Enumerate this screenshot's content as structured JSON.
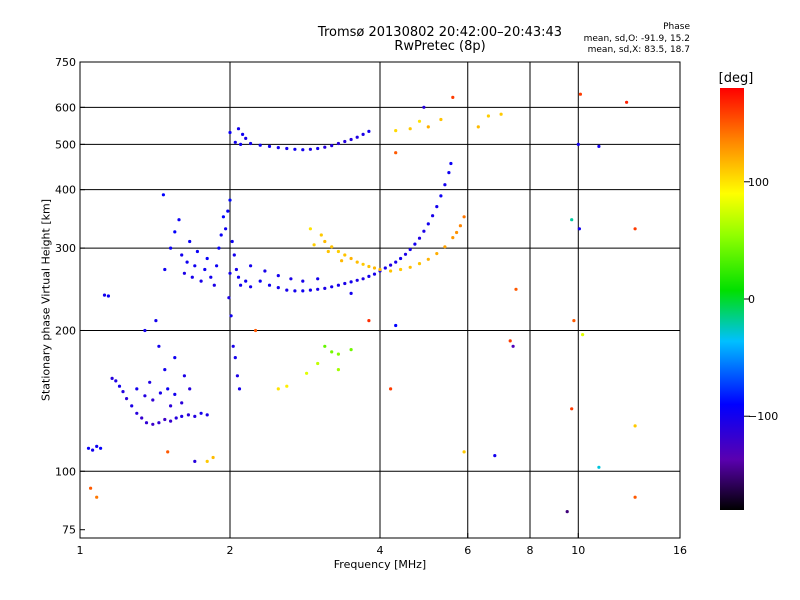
{
  "header": {
    "title_line1": "Tromsø 20130802 20:42:00–20:43:43",
    "title_line2": "RwPretec (8p)"
  },
  "phase_box": {
    "title": "Phase",
    "line1": "mean, sd,O: -91.9, 15.2",
    "line2": "mean, sd,X:  83.5, 18.7"
  },
  "colorbar": {
    "label": "[deg]",
    "ticks": [
      {
        "value": 100,
        "label": "100"
      },
      {
        "value": 0,
        "label": "0"
      },
      {
        "value": -100,
        "label": "−100"
      }
    ],
    "range": [
      -180,
      180
    ]
  },
  "chart_data": {
    "type": "scatter",
    "title": "Tromsø 20130802 20:42:00–20:43:43",
    "subtitle": "RwPretec (8p)",
    "xlabel": "Frequency [MHz]",
    "ylabel": "Stationary phase Virtual Height [km]",
    "x_scale": "log",
    "y_scale": "log",
    "xlim": [
      1,
      16
    ],
    "ylim": [
      72,
      750
    ],
    "x_ticks": [
      {
        "value": 1,
        "label": "1"
      },
      {
        "value": 2,
        "label": "2"
      },
      {
        "value": 4,
        "label": "4"
      },
      {
        "value": 6,
        "label": "6"
      },
      {
        "value": 8,
        "label": "8"
      },
      {
        "value": 10,
        "label": "10"
      },
      {
        "value": 16,
        "label": "16"
      }
    ],
    "x_gridlines": [
      2,
      4,
      6,
      8,
      10
    ],
    "y_ticks": [
      {
        "value": 750,
        "label": "750"
      },
      {
        "value": 600,
        "label": "600"
      },
      {
        "value": 500,
        "label": "500"
      },
      {
        "value": 400,
        "label": "400"
      },
      {
        "value": 300,
        "label": "300"
      },
      {
        "value": 200,
        "label": "200"
      },
      {
        "value": 100,
        "label": "100"
      },
      {
        "value": 75,
        "label": "75"
      }
    ],
    "y_gridlines": [
      100,
      200,
      300,
      400,
      500,
      600
    ],
    "grid": true,
    "color_scale": "phase in degrees (rainbow)",
    "points": [
      {
        "x": 1.04,
        "y": 112,
        "p": -95
      },
      {
        "x": 1.06,
        "y": 111,
        "p": -100
      },
      {
        "x": 1.08,
        "y": 113,
        "p": -98
      },
      {
        "x": 1.1,
        "y": 112,
        "p": -92
      },
      {
        "x": 1.05,
        "y": 92,
        "p": 150
      },
      {
        "x": 1.08,
        "y": 88,
        "p": 140
      },
      {
        "x": 1.12,
        "y": 238,
        "p": -100
      },
      {
        "x": 1.14,
        "y": 237,
        "p": -95
      },
      {
        "x": 1.16,
        "y": 158,
        "p": -110
      },
      {
        "x": 1.18,
        "y": 156,
        "p": -105
      },
      {
        "x": 1.2,
        "y": 152,
        "p": -100
      },
      {
        "x": 1.22,
        "y": 148,
        "p": -108
      },
      {
        "x": 1.24,
        "y": 143,
        "p": -112
      },
      {
        "x": 1.27,
        "y": 138,
        "p": -104
      },
      {
        "x": 1.3,
        "y": 133,
        "p": -110
      },
      {
        "x": 1.33,
        "y": 130,
        "p": -118
      },
      {
        "x": 1.36,
        "y": 127,
        "p": -115
      },
      {
        "x": 1.4,
        "y": 126,
        "p": -120
      },
      {
        "x": 1.44,
        "y": 127,
        "p": -116
      },
      {
        "x": 1.48,
        "y": 129,
        "p": -122
      },
      {
        "x": 1.52,
        "y": 128,
        "p": -118
      },
      {
        "x": 1.56,
        "y": 130,
        "p": -110
      },
      {
        "x": 1.6,
        "y": 131,
        "p": -105
      },
      {
        "x": 1.65,
        "y": 132,
        "p": -112
      },
      {
        "x": 1.7,
        "y": 131,
        "p": -108
      },
      {
        "x": 1.75,
        "y": 133,
        "p": -100
      },
      {
        "x": 1.8,
        "y": 132,
        "p": -104
      },
      {
        "x": 1.3,
        "y": 150,
        "p": -100
      },
      {
        "x": 1.35,
        "y": 145,
        "p": -108
      },
      {
        "x": 1.4,
        "y": 142,
        "p": -115
      },
      {
        "x": 1.45,
        "y": 147,
        "p": -102
      },
      {
        "x": 1.5,
        "y": 150,
        "p": -96
      },
      {
        "x": 1.55,
        "y": 146,
        "p": -100
      },
      {
        "x": 1.6,
        "y": 140,
        "p": -112
      },
      {
        "x": 1.48,
        "y": 165,
        "p": -100
      },
      {
        "x": 1.55,
        "y": 175,
        "p": -98
      },
      {
        "x": 1.62,
        "y": 160,
        "p": -104
      },
      {
        "x": 1.38,
        "y": 155,
        "p": -106
      },
      {
        "x": 1.66,
        "y": 150,
        "p": -110
      },
      {
        "x": 1.44,
        "y": 185,
        "p": -100
      },
      {
        "x": 1.52,
        "y": 138,
        "p": -112
      },
      {
        "x": 1.35,
        "y": 200,
        "p": -100
      },
      {
        "x": 1.42,
        "y": 210,
        "p": -100
      },
      {
        "x": 1.47,
        "y": 390,
        "p": -90
      },
      {
        "x": 1.48,
        "y": 270,
        "p": -98
      },
      {
        "x": 1.52,
        "y": 300,
        "p": -95
      },
      {
        "x": 1.55,
        "y": 325,
        "p": -92
      },
      {
        "x": 1.58,
        "y": 345,
        "p": -96
      },
      {
        "x": 1.6,
        "y": 290,
        "p": -100
      },
      {
        "x": 1.62,
        "y": 265,
        "p": -104
      },
      {
        "x": 1.64,
        "y": 280,
        "p": -98
      },
      {
        "x": 1.66,
        "y": 310,
        "p": -94
      },
      {
        "x": 1.68,
        "y": 260,
        "p": -102
      },
      {
        "x": 1.7,
        "y": 275,
        "p": -99
      },
      {
        "x": 1.72,
        "y": 295,
        "p": -95
      },
      {
        "x": 1.75,
        "y": 255,
        "p": -103
      },
      {
        "x": 1.78,
        "y": 270,
        "p": -97
      },
      {
        "x": 1.8,
        "y": 285,
        "p": -93
      },
      {
        "x": 1.83,
        "y": 260,
        "p": -100
      },
      {
        "x": 1.86,
        "y": 250,
        "p": -104
      },
      {
        "x": 1.88,
        "y": 275,
        "p": -96
      },
      {
        "x": 1.9,
        "y": 300,
        "p": -92
      },
      {
        "x": 1.92,
        "y": 320,
        "p": -95
      },
      {
        "x": 1.94,
        "y": 350,
        "p": -90
      },
      {
        "x": 1.96,
        "y": 330,
        "p": -98
      },
      {
        "x": 1.98,
        "y": 360,
        "p": -94
      },
      {
        "x": 2.0,
        "y": 380,
        "p": -88
      },
      {
        "x": 2.02,
        "y": 310,
        "p": -96
      },
      {
        "x": 2.04,
        "y": 290,
        "p": -100
      },
      {
        "x": 2.06,
        "y": 270,
        "p": -102
      },
      {
        "x": 2.08,
        "y": 260,
        "p": -98
      },
      {
        "x": 2.1,
        "y": 250,
        "p": -100
      },
      {
        "x": 2.0,
        "y": 265,
        "p": -100
      },
      {
        "x": 1.99,
        "y": 235,
        "p": -104
      },
      {
        "x": 2.01,
        "y": 215,
        "p": -98
      },
      {
        "x": 2.03,
        "y": 185,
        "p": -102
      },
      {
        "x": 2.05,
        "y": 175,
        "p": -100
      },
      {
        "x": 2.07,
        "y": 160,
        "p": -104
      },
      {
        "x": 2.09,
        "y": 150,
        "p": -102
      },
      {
        "x": 2.15,
        "y": 255,
        "p": -98
      },
      {
        "x": 2.2,
        "y": 248,
        "p": -100
      },
      {
        "x": 2.3,
        "y": 255,
        "p": -96
      },
      {
        "x": 2.4,
        "y": 250,
        "p": -98
      },
      {
        "x": 2.5,
        "y": 247,
        "p": -100
      },
      {
        "x": 2.6,
        "y": 244,
        "p": -102
      },
      {
        "x": 2.7,
        "y": 243,
        "p": -100
      },
      {
        "x": 2.8,
        "y": 243,
        "p": -98
      },
      {
        "x": 2.9,
        "y": 244,
        "p": -100
      },
      {
        "x": 3.0,
        "y": 245,
        "p": -102
      },
      {
        "x": 3.1,
        "y": 246,
        "p": -104
      },
      {
        "x": 3.2,
        "y": 248,
        "p": -100
      },
      {
        "x": 3.3,
        "y": 250,
        "p": -102
      },
      {
        "x": 3.4,
        "y": 252,
        "p": -104
      },
      {
        "x": 3.5,
        "y": 254,
        "p": -100
      },
      {
        "x": 3.6,
        "y": 256,
        "p": -104
      },
      {
        "x": 3.7,
        "y": 258,
        "p": -106
      },
      {
        "x": 3.8,
        "y": 261,
        "p": -100
      },
      {
        "x": 3.9,
        "y": 264,
        "p": -102
      },
      {
        "x": 4.0,
        "y": 268,
        "p": -104
      },
      {
        "x": 4.1,
        "y": 272,
        "p": -100
      },
      {
        "x": 4.2,
        "y": 276,
        "p": -106
      },
      {
        "x": 4.3,
        "y": 280,
        "p": -102
      },
      {
        "x": 4.4,
        "y": 285,
        "p": -100
      },
      {
        "x": 4.5,
        "y": 291,
        "p": -104
      },
      {
        "x": 4.6,
        "y": 298,
        "p": -102
      },
      {
        "x": 4.7,
        "y": 306,
        "p": -100
      },
      {
        "x": 4.8,
        "y": 315,
        "p": -106
      },
      {
        "x": 4.9,
        "y": 326,
        "p": -104
      },
      {
        "x": 5.0,
        "y": 338,
        "p": -100
      },
      {
        "x": 5.1,
        "y": 352,
        "p": -102
      },
      {
        "x": 5.2,
        "y": 368,
        "p": -100
      },
      {
        "x": 5.3,
        "y": 388,
        "p": -96
      },
      {
        "x": 5.4,
        "y": 410,
        "p": -100
      },
      {
        "x": 5.5,
        "y": 435,
        "p": -98
      },
      {
        "x": 5.55,
        "y": 455,
        "p": -96
      },
      {
        "x": 2.2,
        "y": 275,
        "p": -100
      },
      {
        "x": 2.35,
        "y": 268,
        "p": -102
      },
      {
        "x": 2.5,
        "y": 262,
        "p": -100
      },
      {
        "x": 2.65,
        "y": 258,
        "p": -104
      },
      {
        "x": 2.8,
        "y": 255,
        "p": -102
      },
      {
        "x": 3.0,
        "y": 258,
        "p": -100
      },
      {
        "x": 2.05,
        "y": 505,
        "p": -100
      },
      {
        "x": 2.1,
        "y": 500,
        "p": -98
      },
      {
        "x": 2.15,
        "y": 515,
        "p": -102
      },
      {
        "x": 2.2,
        "y": 502,
        "p": -100
      },
      {
        "x": 2.3,
        "y": 498,
        "p": -96
      },
      {
        "x": 2.4,
        "y": 495,
        "p": -98
      },
      {
        "x": 2.5,
        "y": 492,
        "p": -100
      },
      {
        "x": 2.6,
        "y": 490,
        "p": -102
      },
      {
        "x": 2.7,
        "y": 488,
        "p": -98
      },
      {
        "x": 2.8,
        "y": 487,
        "p": -100
      },
      {
        "x": 2.9,
        "y": 488,
        "p": -104
      },
      {
        "x": 3.0,
        "y": 490,
        "p": -100
      },
      {
        "x": 3.1,
        "y": 493,
        "p": -110
      },
      {
        "x": 3.2,
        "y": 497,
        "p": -108
      },
      {
        "x": 3.3,
        "y": 502,
        "p": -112
      },
      {
        "x": 3.4,
        "y": 507,
        "p": -110
      },
      {
        "x": 3.5,
        "y": 512,
        "p": -108
      },
      {
        "x": 3.6,
        "y": 518,
        "p": -106
      },
      {
        "x": 3.7,
        "y": 525,
        "p": -104
      },
      {
        "x": 3.8,
        "y": 533,
        "p": -100
      },
      {
        "x": 2.0,
        "y": 530,
        "p": -96
      },
      {
        "x": 2.08,
        "y": 540,
        "p": -100
      },
      {
        "x": 2.12,
        "y": 525,
        "p": -98
      },
      {
        "x": 3.05,
        "y": 320,
        "p": 110
      },
      {
        "x": 3.1,
        "y": 310,
        "p": 115
      },
      {
        "x": 3.2,
        "y": 302,
        "p": 112
      },
      {
        "x": 3.3,
        "y": 295,
        "p": 108
      },
      {
        "x": 3.4,
        "y": 290,
        "p": 112
      },
      {
        "x": 3.5,
        "y": 285,
        "p": 118
      },
      {
        "x": 3.6,
        "y": 280,
        "p": 114
      },
      {
        "x": 3.7,
        "y": 277,
        "p": 110
      },
      {
        "x": 3.8,
        "y": 274,
        "p": 112
      },
      {
        "x": 3.9,
        "y": 272,
        "p": 116
      },
      {
        "x": 4.0,
        "y": 270,
        "p": 118
      },
      {
        "x": 4.2,
        "y": 268,
        "p": 112
      },
      {
        "x": 4.4,
        "y": 270,
        "p": 110
      },
      {
        "x": 4.6,
        "y": 273,
        "p": 114
      },
      {
        "x": 4.8,
        "y": 278,
        "p": 112
      },
      {
        "x": 5.0,
        "y": 284,
        "p": 118
      },
      {
        "x": 5.2,
        "y": 292,
        "p": 120
      },
      {
        "x": 5.4,
        "y": 302,
        "p": 124
      },
      {
        "x": 5.6,
        "y": 316,
        "p": 128
      },
      {
        "x": 5.8,
        "y": 335,
        "p": 135
      },
      {
        "x": 5.9,
        "y": 350,
        "p": 140
      },
      {
        "x": 2.9,
        "y": 330,
        "p": 100
      },
      {
        "x": 2.95,
        "y": 305,
        "p": 108
      },
      {
        "x": 3.15,
        "y": 295,
        "p": 112
      },
      {
        "x": 3.35,
        "y": 282,
        "p": 116
      },
      {
        "x": 5.7,
        "y": 324,
        "p": 130
      },
      {
        "x": 3.1,
        "y": 185,
        "p": 40
      },
      {
        "x": 3.2,
        "y": 180,
        "p": 45
      },
      {
        "x": 3.3,
        "y": 178,
        "p": 50
      },
      {
        "x": 3.5,
        "y": 182,
        "p": 44
      },
      {
        "x": 3.3,
        "y": 165,
        "p": 60
      },
      {
        "x": 2.85,
        "y": 162,
        "p": 80
      },
      {
        "x": 2.5,
        "y": 150,
        "p": 100
      },
      {
        "x": 2.6,
        "y": 152,
        "p": 96
      },
      {
        "x": 3.0,
        "y": 170,
        "p": 70
      },
      {
        "x": 4.6,
        "y": 540,
        "p": 110
      },
      {
        "x": 4.8,
        "y": 560,
        "p": 100
      },
      {
        "x": 5.0,
        "y": 545,
        "p": 120
      },
      {
        "x": 5.3,
        "y": 565,
        "p": 112
      },
      {
        "x": 4.3,
        "y": 535,
        "p": 104
      },
      {
        "x": 6.3,
        "y": 545,
        "p": 115
      },
      {
        "x": 6.6,
        "y": 575,
        "p": 108
      },
      {
        "x": 7.0,
        "y": 580,
        "p": 110
      },
      {
        "x": 4.9,
        "y": 600,
        "p": -110
      },
      {
        "x": 5.6,
        "y": 630,
        "p": 160
      },
      {
        "x": 3.8,
        "y": 210,
        "p": 165
      },
      {
        "x": 4.2,
        "y": 150,
        "p": 160
      },
      {
        "x": 4.3,
        "y": 205,
        "p": -90
      },
      {
        "x": 2.25,
        "y": 200,
        "p": 150
      },
      {
        "x": 1.8,
        "y": 105,
        "p": 110
      },
      {
        "x": 1.85,
        "y": 107,
        "p": 115
      },
      {
        "x": 1.7,
        "y": 105,
        "p": -110
      },
      {
        "x": 1.5,
        "y": 110,
        "p": 150
      },
      {
        "x": 7.3,
        "y": 190,
        "p": 160
      },
      {
        "x": 7.4,
        "y": 185,
        "p": -130
      },
      {
        "x": 6.8,
        "y": 108,
        "p": -100
      },
      {
        "x": 9.7,
        "y": 136,
        "p": 160
      },
      {
        "x": 9.5,
        "y": 82,
        "p": -150
      },
      {
        "x": 10.1,
        "y": 640,
        "p": 160
      },
      {
        "x": 10.0,
        "y": 500,
        "p": -100
      },
      {
        "x": 11.0,
        "y": 495,
        "p": -100
      },
      {
        "x": 10.05,
        "y": 330,
        "p": -100
      },
      {
        "x": 9.7,
        "y": 345,
        "p": -20
      },
      {
        "x": 9.8,
        "y": 210,
        "p": 150
      },
      {
        "x": 10.2,
        "y": 196,
        "p": 80
      },
      {
        "x": 12.5,
        "y": 615,
        "p": 170
      },
      {
        "x": 13.0,
        "y": 330,
        "p": 160
      },
      {
        "x": 13.0,
        "y": 125,
        "p": 110
      },
      {
        "x": 13.0,
        "y": 88,
        "p": 150
      },
      {
        "x": 11.0,
        "y": 102,
        "p": -30
      },
      {
        "x": 5.9,
        "y": 110,
        "p": 110
      },
      {
        "x": 7.5,
        "y": 245,
        "p": 150
      },
      {
        "x": 4.3,
        "y": 480,
        "p": 150
      },
      {
        "x": 3.5,
        "y": 240,
        "p": -100
      }
    ]
  }
}
